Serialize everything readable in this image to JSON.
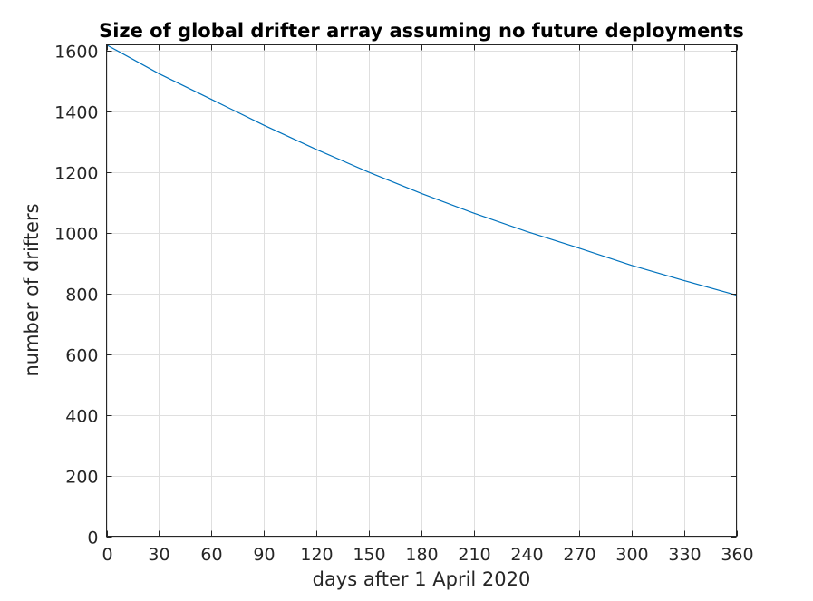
{
  "chart_data": {
    "type": "line",
    "title": "Size of global drifter array assuming no future deployments",
    "xlabel": "days after 1 April 2020",
    "ylabel": "number of drifters",
    "xlim": [
      0,
      360
    ],
    "ylim": [
      0,
      1620
    ],
    "xticks": [
      0,
      30,
      60,
      90,
      120,
      150,
      180,
      210,
      240,
      270,
      300,
      330,
      360
    ],
    "yticks": [
      0,
      200,
      400,
      600,
      800,
      1000,
      1200,
      1400,
      1600
    ],
    "grid": true,
    "legend": "none",
    "series": [
      {
        "color": "#0072bd",
        "x": [
          0,
          30,
          60,
          90,
          120,
          150,
          180,
          210,
          240,
          270,
          300,
          330,
          360
        ],
        "y": [
          1620,
          1525,
          1440,
          1355,
          1275,
          1200,
          1130,
          1065,
          1005,
          950,
          893,
          843,
          795
        ]
      }
    ]
  }
}
